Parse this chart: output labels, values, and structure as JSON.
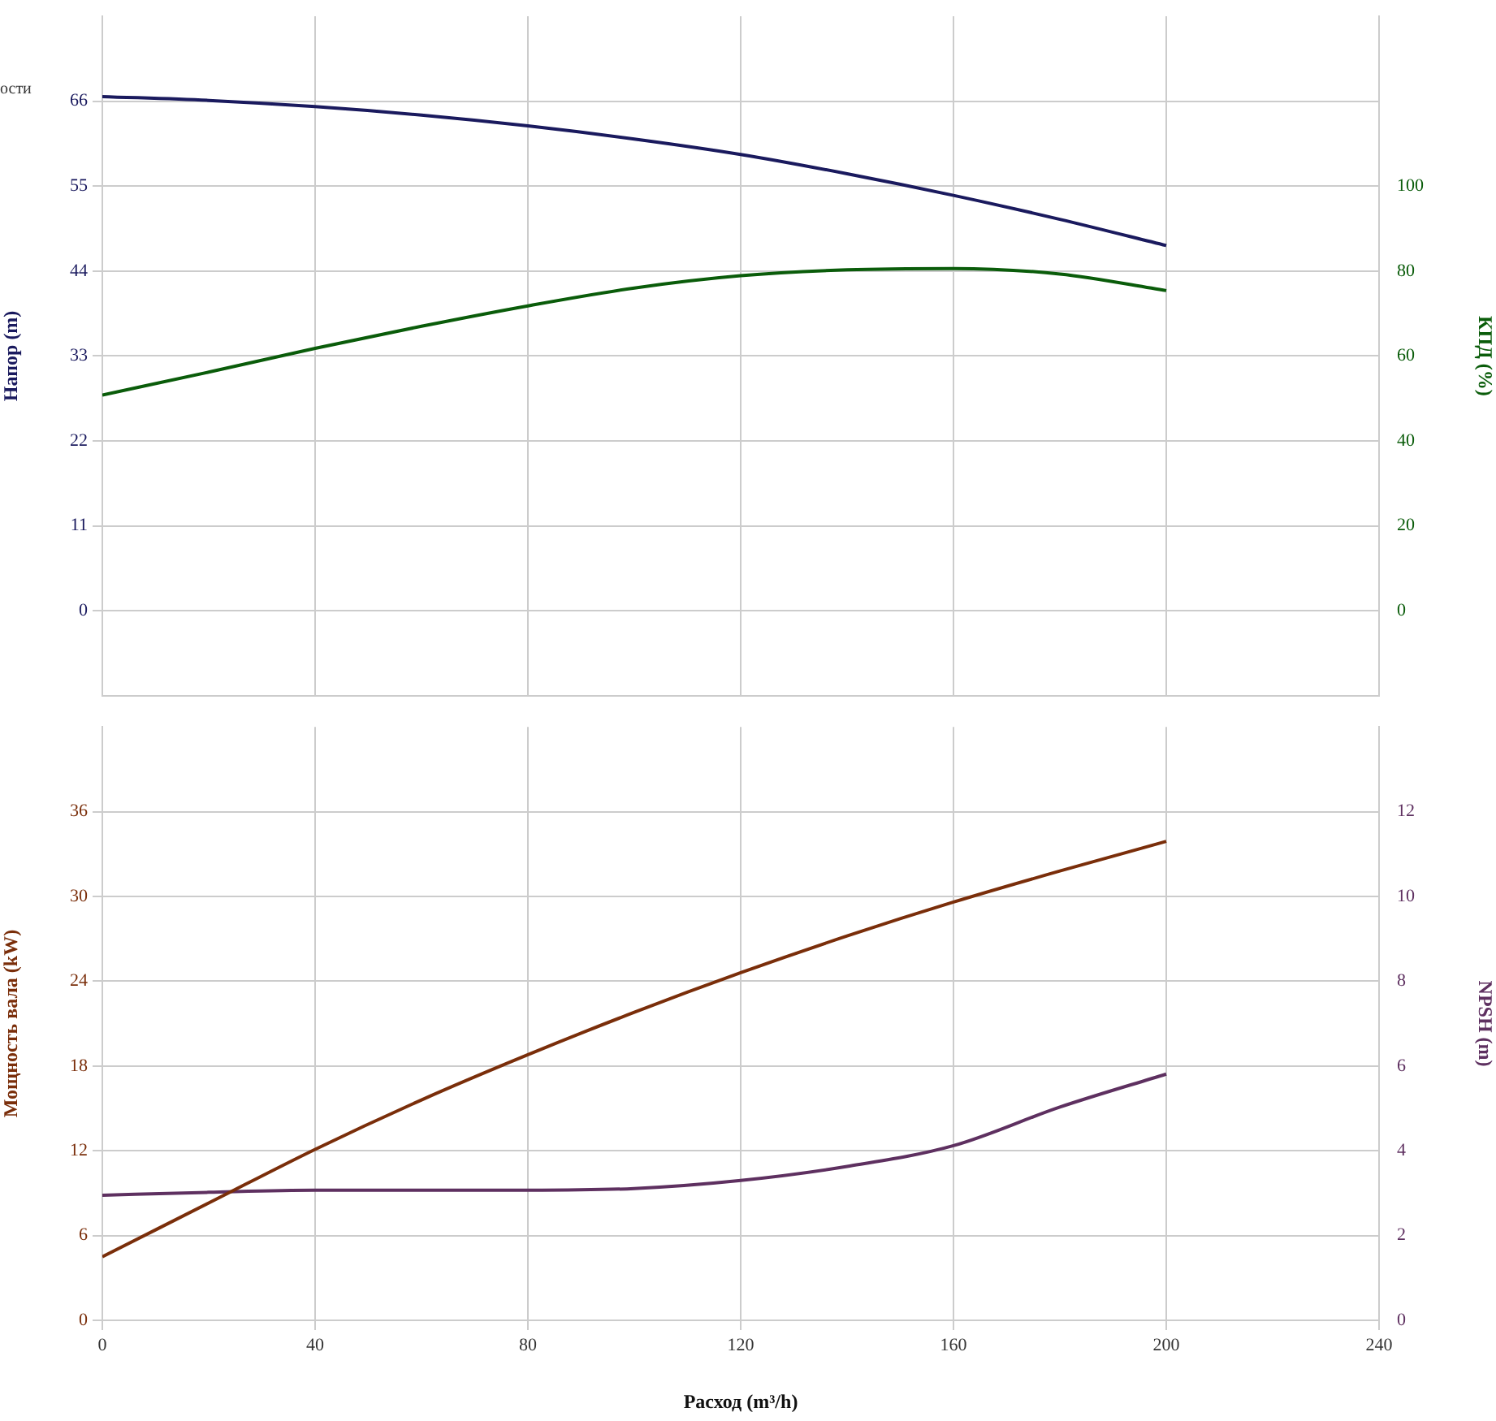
{
  "chart_data": [
    {
      "type": "line",
      "annotations": [
        "ости"
      ],
      "ylabel": "Напор (m)",
      "y2label": "КПД (%)",
      "x": [
        0,
        20,
        40,
        60,
        80,
        100,
        120,
        140,
        160,
        180,
        200
      ],
      "xlim": [
        0,
        240
      ],
      "xticks": [
        0,
        40,
        80,
        120,
        160,
        200,
        240
      ],
      "ylim": [
        -11,
        77
      ],
      "yticks": [
        0,
        11,
        22,
        33,
        44,
        55,
        66
      ],
      "y2lim": [
        -20,
        140
      ],
      "y2ticks": [
        0,
        20,
        40,
        60,
        80,
        100
      ],
      "grid": true,
      "legend": false,
      "marker": "none",
      "tick_labels": "y",
      "series": [
        {
          "color": "#1a1a5e",
          "values": [
            66.6,
            66.1,
            65.3,
            64.2,
            62.8,
            61.1,
            59.1,
            56.6,
            53.8,
            50.7,
            47.3
          ]
        },
        {
          "color": "#0a5c0a",
          "axis": "y2",
          "values": [
            50.8,
            56.2,
            61.8,
            67.0,
            71.8,
            76.0,
            78.9,
            80.3,
            80.6,
            79.3,
            75.4
          ]
        }
      ]
    },
    {
      "type": "line",
      "xlabel": "Расход (m³/h)",
      "ylabel": "Мощность вала (kW)",
      "y2label": "NPSH (m)",
      "x": [
        0,
        20,
        40,
        60,
        80,
        100,
        120,
        140,
        160,
        180,
        200
      ],
      "xlim": [
        0,
        240
      ],
      "xticks": [
        0,
        40,
        80,
        120,
        160,
        200,
        240
      ],
      "ylim": [
        0,
        42
      ],
      "yticks": [
        0,
        6,
        12,
        18,
        24,
        30,
        36
      ],
      "y2lim": [
        0,
        14
      ],
      "y2ticks": [
        0,
        2,
        4,
        6,
        8,
        10,
        12
      ],
      "grid": true,
      "legend": false,
      "marker": "none",
      "series": [
        {
          "color": "#7a2e0a",
          "values": [
            4.5,
            8.3,
            12.1,
            15.6,
            18.8,
            21.8,
            24.6,
            27.2,
            29.6,
            31.8,
            33.9
          ]
        },
        {
          "color": "#5e3060",
          "axis": "y2",
          "values": [
            2.95,
            3.02,
            3.07,
            3.07,
            3.07,
            3.11,
            3.3,
            3.63,
            4.12,
            5.03,
            5.81
          ]
        }
      ]
    }
  ]
}
